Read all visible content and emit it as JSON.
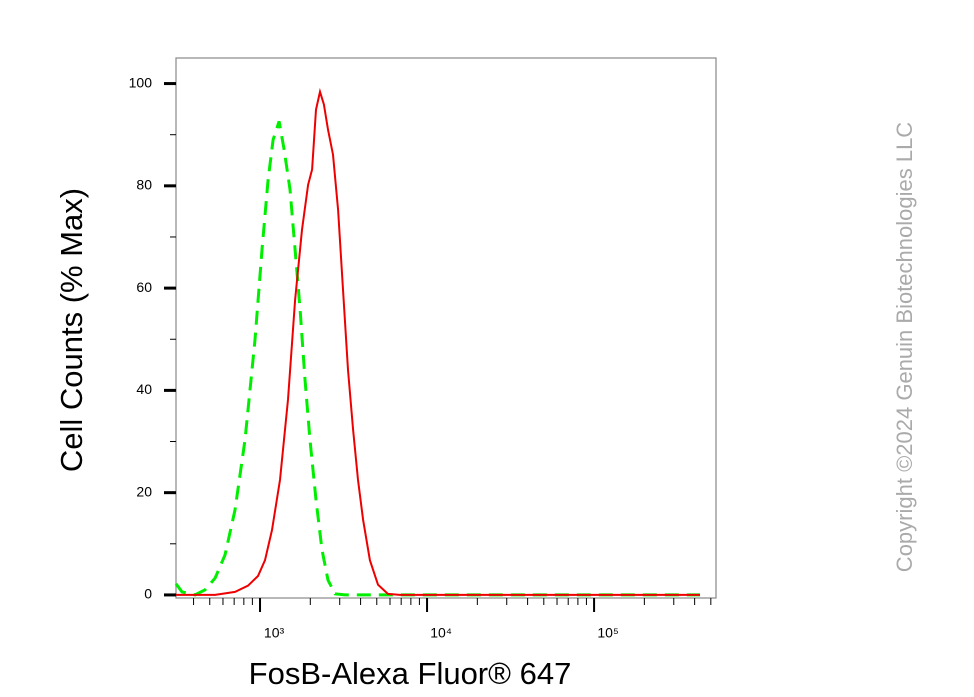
{
  "chart_data": {
    "type": "line",
    "xlabel": "FosB-Alexa Fluor® 647",
    "ylabel": "Cell Counts (% Max)",
    "annotation": "Copyright ©2024 Genuin Biotechnologies LLC",
    "xscale": "log",
    "xlim": [
      314,
      537000
    ],
    "ylim": [
      -0.6,
      105
    ],
    "xticks": [
      {
        "value": 1000,
        "label": "10³"
      },
      {
        "value": 10000,
        "label": "10⁴"
      },
      {
        "value": 100000,
        "label": "10⁵"
      }
    ],
    "xminorticks": [
      400,
      500,
      600,
      700,
      800,
      900,
      2000,
      3000,
      4000,
      5000,
      6000,
      7000,
      8000,
      9000,
      20000,
      30000,
      40000,
      50000,
      60000,
      70000,
      80000,
      90000,
      200000,
      300000,
      400000,
      500000
    ],
    "yticks": [
      0,
      20,
      40,
      60,
      80,
      100
    ],
    "yminorticks": [
      10,
      30,
      50,
      70,
      90
    ],
    "series": [
      {
        "color": "#00ee00",
        "dashed": true,
        "x": [
          314,
          341,
          408,
          469,
          538,
          617,
          708,
          813,
          933,
          1028,
          1117,
          1197,
          1300,
          1393,
          1512,
          1621,
          1738,
          1859,
          1992,
          2163,
          2349,
          2552,
          2812,
          3228,
          431000
        ],
        "values": [
          2.2,
          0.6,
          0,
          1,
          3.3,
          7.8,
          16.6,
          30.3,
          49.9,
          67.5,
          81.2,
          89,
          92.6,
          87.1,
          79.3,
          67.5,
          55.8,
          42.1,
          30.3,
          18.6,
          8.8,
          2.9,
          0.2,
          0,
          0
        ]
      },
      {
        "color": "#ee0000",
        "dashed": false,
        "x": [
          314,
          538,
          708,
          847,
          973,
          1071,
          1180,
          1317,
          1471,
          1621,
          1784,
          1940,
          2049,
          2163,
          2285,
          2413,
          2552,
          2734,
          2932,
          3140,
          3365,
          3609,
          3862,
          4140,
          4549,
          5083,
          5832,
          6890,
          431000
        ],
        "values": [
          0,
          0,
          0.6,
          1.8,
          3.7,
          6.8,
          12.7,
          22.5,
          38.2,
          57.7,
          71.4,
          80.2,
          83.2,
          94.9,
          98.4,
          95.9,
          91,
          86.1,
          75.3,
          59.7,
          44,
          32.3,
          22.5,
          14.7,
          6.8,
          2,
          0.2,
          0,
          0
        ]
      }
    ]
  }
}
